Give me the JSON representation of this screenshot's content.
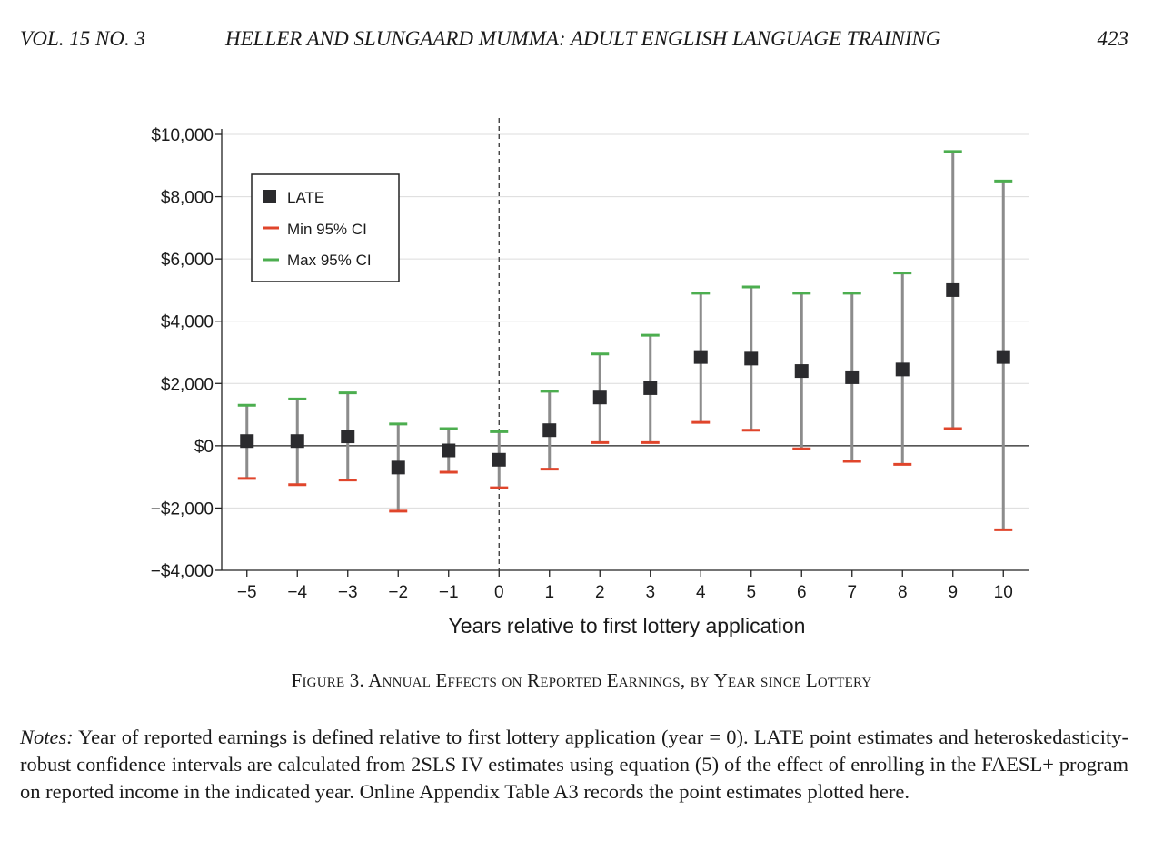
{
  "header": {
    "volume": "VOL. 15 NO. 3",
    "title": "HELLER AND SLUNGAARD MUMMA: ADULT ENGLISH LANGUAGE TRAINING",
    "page": "423"
  },
  "caption": "Figure 3. Annual Effects on Reported Earnings, by Year since Lottery",
  "notes": {
    "label": "Notes:",
    "text": " Year of reported earnings is defined relative to first lottery application (year = 0). LATE point estimates and heteroskedasticity-robust confidence intervals are calculated from 2SLS IV estimates using equation (5) of the effect of enrolling in the FAESL+ program on reported income in the indicated year. Online Appendix Table A3 records the point estimates plotted here."
  },
  "colors": {
    "late": "#2b2b2e",
    "min_ci": "#e0452b",
    "max_ci": "#4cae4f",
    "ci_bar": "#8c8c8c"
  },
  "chart_data": {
    "type": "scatter",
    "title": "",
    "xlabel": "Years relative to first lottery application",
    "ylabel": "",
    "x": [
      -5,
      -4,
      -3,
      -2,
      -1,
      0,
      1,
      2,
      3,
      4,
      5,
      6,
      7,
      8,
      9,
      10
    ],
    "x_tick_labels": [
      "−5",
      "−4",
      "−3",
      "−2",
      "−1",
      "0",
      "1",
      "2",
      "3",
      "4",
      "5",
      "6",
      "7",
      "8",
      "9",
      "10"
    ],
    "xlim": [
      -5.5,
      10.5
    ],
    "ylim": [
      -4000,
      10000
    ],
    "y_ticks": [
      10000,
      8000,
      6000,
      4000,
      2000,
      0,
      -2000,
      -4000
    ],
    "y_tick_labels": [
      "$10,000",
      "$8,000",
      "$6,000",
      "$4,000",
      "$2,000",
      "$0",
      "−$2,000",
      "−$4,000"
    ],
    "grid": true,
    "reference_line_x": 0,
    "reference_line_y": 0,
    "legend_position": "top-left",
    "series": [
      {
        "name": "LATE",
        "values": [
          150,
          150,
          300,
          -700,
          -150,
          -450,
          500,
          1550,
          1850,
          2850,
          2800,
          2400,
          2200,
          2450,
          5000,
          2850
        ]
      },
      {
        "name": "Min 95% CI",
        "values": [
          -1050,
          -1250,
          -1100,
          -2100,
          -850,
          -1350,
          -750,
          100,
          100,
          750,
          500,
          -100,
          -500,
          -600,
          550,
          -2700
        ]
      },
      {
        "name": "Max 95% CI",
        "values": [
          1300,
          1500,
          1700,
          700,
          550,
          450,
          1750,
          2950,
          3550,
          4900,
          5100,
          4900,
          4900,
          5550,
          9450,
          8500
        ]
      }
    ]
  }
}
